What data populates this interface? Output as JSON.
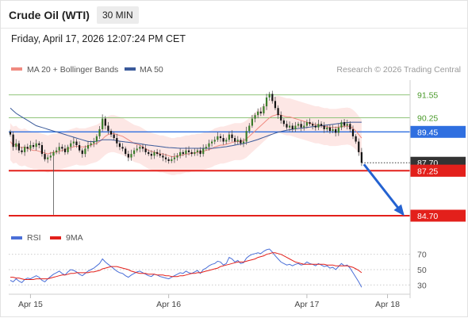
{
  "header": {
    "title": "Crude Oil (WTI)",
    "timeframe": "30 MIN",
    "datetime": "Friday, April 17, 2026 12:07:24 PM CET"
  },
  "credit": "Research © 2026 Trading Central",
  "colors": {
    "bullish": "#3a7d2a",
    "bearish": "#111111",
    "ma20": "#f08a80",
    "bollinger_fill": "#fde3e1",
    "ma50": "#3a5a9a",
    "resistance": "#90c47a",
    "support": "#e3201b",
    "pivot": "#2f6fe0",
    "last": "#333333",
    "rsi": "#4a6fd8",
    "rsi_ma": "#e3201b",
    "arrow": "#2462d1"
  },
  "chart_data": [
    {
      "type": "line",
      "role": "price",
      "legend": [
        "MA 20 + Bollinger Bands",
        "MA 50"
      ],
      "x_ticks": [
        "Apr 15",
        "Apr 16",
        "Apr 17",
        "Apr 18"
      ],
      "x_tick_index": [
        7,
        55,
        103,
        131
      ],
      "ylim": [
        84.25,
        92.25
      ],
      "levels": [
        {
          "label": "91.55",
          "value": 91.55,
          "kind": "resistance"
        },
        {
          "label": "90.25",
          "value": 90.25,
          "kind": "resistance"
        },
        {
          "label": "89.45",
          "value": 89.45,
          "kind": "pivot"
        },
        {
          "label": "87.70",
          "value": 87.7,
          "kind": "last"
        },
        {
          "label": "87.25",
          "value": 87.25,
          "kind": "support"
        },
        {
          "label": "84.70",
          "value": 84.7,
          "kind": "support"
        }
      ],
      "close": [
        89.3,
        88.6,
        88.8,
        88.4,
        88.3,
        88.6,
        88.5,
        88.7,
        88.6,
        88.8,
        88.7,
        88.2,
        87.9,
        88.0,
        88.1,
        88.3,
        88.4,
        88.6,
        88.5,
        88.3,
        88.6,
        88.8,
        88.9,
        88.7,
        88.4,
        88.2,
        88.5,
        88.7,
        88.8,
        88.9,
        89.2,
        89.6,
        90.2,
        89.8,
        89.5,
        89.3,
        89.1,
        88.8,
        88.6,
        88.5,
        88.2,
        88.0,
        88.2,
        88.4,
        88.5,
        88.6,
        88.5,
        88.3,
        88.2,
        88.1,
        88.3,
        88.2,
        88.1,
        88.0,
        87.9,
        87.8,
        87.9,
        88.0,
        88.1,
        88.3,
        88.2,
        88.4,
        88.3,
        88.2,
        88.3,
        88.4,
        88.2,
        88.5,
        88.6,
        88.8,
        88.9,
        89.0,
        89.2,
        89.1,
        88.9,
        89.0,
        89.3,
        89.1,
        88.9,
        89.0,
        88.8,
        88.9,
        89.5,
        89.8,
        90.2,
        90.4,
        90.6,
        90.5,
        90.9,
        91.4,
        91.6,
        91.2,
        90.8,
        90.4,
        90.1,
        89.9,
        89.7,
        89.8,
        89.6,
        89.8,
        89.9,
        89.7,
        89.8,
        90.0,
        89.9,
        89.8,
        89.7,
        89.9,
        89.8,
        89.6,
        89.7,
        89.5,
        89.6,
        89.4,
        89.7,
        90.0,
        89.8,
        89.9,
        89.6,
        89.2,
        88.9,
        88.3,
        87.7
      ],
      "ma20": [
        88.9,
        88.7,
        88.75,
        88.6,
        88.55,
        88.6,
        88.5,
        88.45,
        88.4,
        88.4,
        88.35,
        88.3,
        88.25,
        88.2,
        88.25,
        88.3,
        88.3,
        88.35,
        88.4,
        88.45,
        88.5,
        88.55,
        88.6,
        88.65,
        88.6,
        88.6,
        88.6,
        88.65,
        88.7,
        88.75,
        88.8,
        88.9,
        89.05,
        89.2,
        89.3,
        89.35,
        89.35,
        89.3,
        89.25,
        89.2,
        89.1,
        89.0,
        88.9,
        88.8,
        88.75,
        88.7,
        88.6,
        88.5,
        88.4,
        88.35,
        88.3,
        88.25,
        88.2,
        88.2,
        88.15,
        88.1,
        88.05,
        88.05,
        88.1,
        88.1,
        88.15,
        88.2,
        88.2,
        88.25,
        88.25,
        88.3,
        88.3,
        88.35,
        88.4,
        88.45,
        88.5,
        88.6,
        88.65,
        88.7,
        88.7,
        88.75,
        88.8,
        88.85,
        88.9,
        88.9,
        88.9,
        88.95,
        89.05,
        89.2,
        89.35,
        89.5,
        89.65,
        89.8,
        89.95,
        90.1,
        90.25,
        90.35,
        90.4,
        90.45,
        90.4,
        90.35,
        90.3,
        90.3,
        90.25,
        90.2,
        90.15,
        90.1,
        90.05,
        90.0,
        89.95,
        89.9,
        89.85,
        89.85,
        89.8,
        89.75,
        89.75,
        89.7,
        89.7,
        89.7,
        89.72,
        89.75,
        89.76,
        89.78,
        89.75,
        89.65,
        89.5,
        89.3,
        89.1
      ],
      "ma50": [
        90.8,
        90.65,
        90.5,
        90.4,
        90.3,
        90.2,
        90.1,
        90.0,
        89.9,
        89.8,
        89.75,
        89.7,
        89.65,
        89.6,
        89.55,
        89.5,
        89.45,
        89.4,
        89.35,
        89.3,
        89.25,
        89.2,
        89.15,
        89.1,
        89.05,
        89.0,
        88.95,
        88.9,
        88.9,
        88.9,
        88.92,
        88.95,
        89.0,
        89.0,
        89.0,
        89.0,
        88.98,
        88.95,
        88.92,
        88.9,
        88.88,
        88.86,
        88.84,
        88.82,
        88.8,
        88.78,
        88.75,
        88.72,
        88.7,
        88.68,
        88.66,
        88.64,
        88.62,
        88.6,
        88.58,
        88.56,
        88.55,
        88.54,
        88.53,
        88.52,
        88.52,
        88.52,
        88.52,
        88.52,
        88.52,
        88.52,
        88.52,
        88.52,
        88.52,
        88.52,
        88.52,
        88.53,
        88.55,
        88.57,
        88.59,
        88.61,
        88.64,
        88.67,
        88.7,
        88.73,
        88.76,
        88.79,
        88.83,
        88.87,
        88.92,
        88.97,
        89.02,
        89.08,
        89.14,
        89.2,
        89.26,
        89.32,
        89.38,
        89.43,
        89.47,
        89.51,
        89.54,
        89.57,
        89.6,
        89.62,
        89.64,
        89.66,
        89.68,
        89.7,
        89.72,
        89.74,
        89.76,
        89.78,
        89.8,
        89.82,
        89.84,
        89.86,
        89.88,
        89.9,
        89.92,
        89.94,
        89.96,
        89.98,
        89.99,
        90.0,
        90.0,
        90.0,
        90.0
      ],
      "band_width": 1.05
    },
    {
      "type": "line",
      "role": "rsi",
      "legend": [
        "RSI",
        "9MA"
      ],
      "ylim": [
        22,
        78
      ],
      "ticks": [
        70,
        50,
        30
      ],
      "rsi": [
        36,
        34,
        38,
        35,
        33,
        37,
        39,
        38,
        40,
        42,
        40,
        36,
        34,
        38,
        41,
        44,
        46,
        48,
        45,
        43,
        47,
        50,
        49,
        47,
        44,
        42,
        45,
        48,
        50,
        52,
        55,
        58,
        64,
        60,
        57,
        54,
        51,
        48,
        46,
        45,
        42,
        40,
        43,
        45,
        47,
        48,
        46,
        44,
        42,
        41,
        44,
        43,
        41,
        40,
        39,
        38,
        40,
        42,
        44,
        46,
        45,
        48,
        46,
        45,
        47,
        49,
        45,
        50,
        52,
        55,
        57,
        58,
        61,
        60,
        56,
        58,
        66,
        64,
        60,
        62,
        58,
        59,
        65,
        68,
        70,
        71,
        72,
        71,
        74,
        76,
        77,
        73,
        68,
        64,
        60,
        58,
        56,
        57,
        55,
        57,
        58,
        56,
        57,
        60,
        58,
        57,
        55,
        58,
        56,
        54,
        55,
        52,
        53,
        50,
        54,
        58,
        55,
        56,
        52,
        46,
        40,
        34,
        27
      ],
      "ma9": [
        40,
        40,
        39,
        39,
        38,
        37,
        37,
        37,
        37,
        38,
        38,
        38,
        38,
        38,
        39,
        40,
        41,
        42,
        43,
        43,
        44,
        45,
        45,
        46,
        46,
        46,
        46,
        46,
        47,
        47,
        48,
        49,
        51,
        52,
        53,
        54,
        54,
        54,
        53,
        52,
        51,
        50,
        48,
        47,
        46,
        45,
        45,
        45,
        44,
        44,
        44,
        43,
        43,
        43,
        42,
        42,
        41,
        41,
        41,
        42,
        42,
        43,
        44,
        45,
        45,
        46,
        46,
        47,
        48,
        49,
        50,
        51,
        52,
        54,
        55,
        56,
        57,
        58,
        59,
        60,
        60,
        60,
        61,
        62,
        63,
        64,
        66,
        67,
        68,
        70,
        71,
        72,
        72,
        71,
        70,
        68,
        66,
        64,
        62,
        60,
        59,
        58,
        57,
        57,
        57,
        57,
        57,
        57,
        57,
        57,
        56,
        56,
        56,
        55,
        55,
        55,
        55,
        55,
        54,
        53,
        51,
        49,
        46
      ]
    }
  ]
}
